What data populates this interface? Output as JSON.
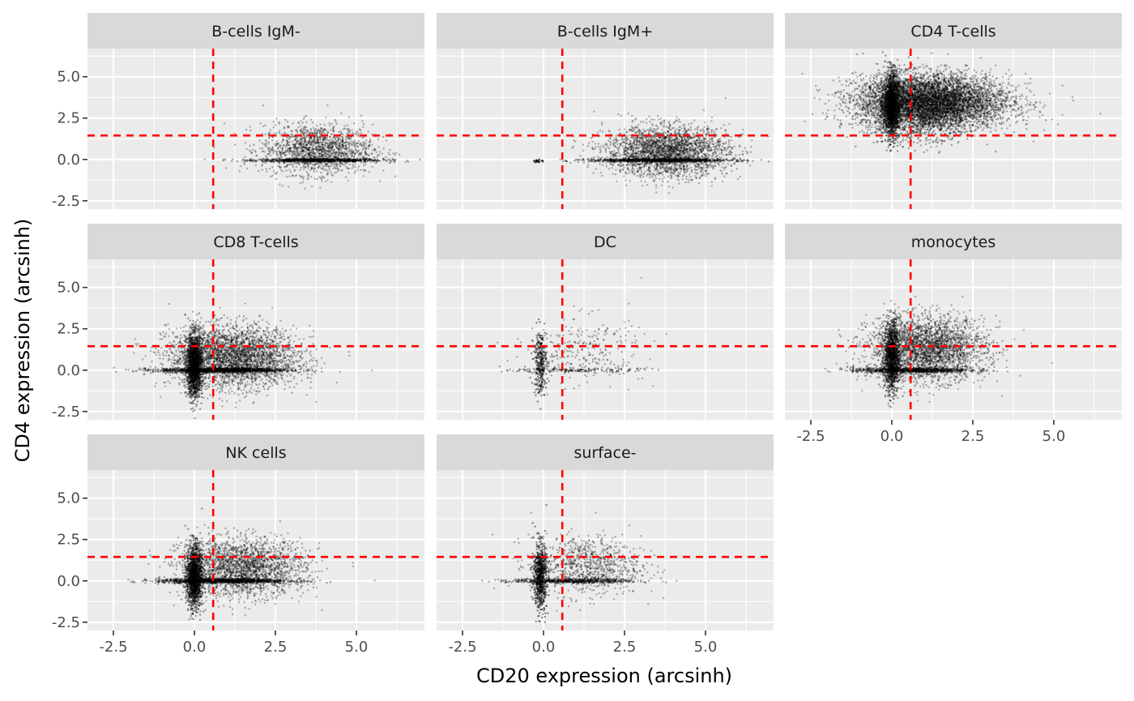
{
  "chart_data": {
    "type": "scatter",
    "layout": "facet_wrap",
    "xlabel": "CD20 expression (arcsinh)",
    "ylabel": "CD4 expression (arcsinh)",
    "xlim": [
      -3.3,
      7.1
    ],
    "ylim": [
      -3.0,
      6.7
    ],
    "x_ticks": [
      -2.5,
      0.0,
      2.5,
      5.0
    ],
    "x_tick_labels": [
      "-2.5",
      "0.0",
      "2.5",
      "5.0"
    ],
    "y_ticks": [
      -2.5,
      0.0,
      2.5,
      5.0
    ],
    "y_tick_labels": [
      "-2.5",
      "0.0",
      "2.5",
      "5.0"
    ],
    "reference_lines": {
      "vertical_x": 0.58,
      "horizontal_y": 1.45,
      "color": "#FF0000",
      "style": "dashed"
    },
    "point_color": "#000000",
    "grid": true,
    "panel_background": "#EBEBEB",
    "strip_background": "#D9D9D9",
    "facets": [
      {
        "label": "B-cells IgM-",
        "clusters": [
          {
            "cx": 3.8,
            "cy": -0.05,
            "sx": 1.0,
            "sy": 0.05,
            "n": 900,
            "op": 0.35
          },
          {
            "cx": 3.8,
            "cy": 0.6,
            "sx": 0.85,
            "sy": 0.75,
            "n": 1600,
            "op": 0.3
          }
        ]
      },
      {
        "label": "B-cells IgM+",
        "clusters": [
          {
            "cx": 3.6,
            "cy": -0.05,
            "sx": 1.05,
            "sy": 0.05,
            "n": 1100,
            "op": 0.35
          },
          {
            "cx": 3.8,
            "cy": 0.5,
            "sx": 0.95,
            "sy": 0.75,
            "n": 2600,
            "op": 0.3
          },
          {
            "cx": -0.2,
            "cy": -0.1,
            "sx": 0.08,
            "sy": 0.05,
            "n": 20,
            "op": 0.6
          }
        ]
      },
      {
        "label": "CD4 T-cells",
        "clusters": [
          {
            "cx": 1.3,
            "cy": 3.5,
            "sx": 1.2,
            "sy": 0.8,
            "n": 4500,
            "op": 0.3
          },
          {
            "cx": 0.0,
            "cy": 3.3,
            "sx": 0.12,
            "sy": 1.0,
            "n": 1600,
            "op": 0.4
          },
          {
            "cx": 0.9,
            "cy": 3.2,
            "sx": 0.9,
            "sy": 0.9,
            "n": 2400,
            "op": 0.35
          }
        ]
      },
      {
        "label": "CD8 T-cells",
        "clusters": [
          {
            "cx": 0.0,
            "cy": 0.3,
            "sx": 0.12,
            "sy": 0.95,
            "n": 1600,
            "op": 0.4
          },
          {
            "cx": 0.9,
            "cy": 0.0,
            "sx": 1.0,
            "sy": 0.07,
            "n": 1400,
            "op": 0.35
          },
          {
            "cx": 1.2,
            "cy": 0.8,
            "sx": 1.0,
            "sy": 0.9,
            "n": 3200,
            "op": 0.3
          }
        ]
      },
      {
        "label": "DC",
        "clusters": [
          {
            "cx": -0.1,
            "cy": 0.5,
            "sx": 0.1,
            "sy": 1.0,
            "n": 300,
            "op": 0.45
          },
          {
            "cx": 1.0,
            "cy": 0.0,
            "sx": 1.0,
            "sy": 0.07,
            "n": 180,
            "op": 0.35
          },
          {
            "cx": 1.3,
            "cy": 1.3,
            "sx": 0.9,
            "sy": 1.0,
            "n": 260,
            "op": 0.3
          }
        ]
      },
      {
        "label": "monocytes",
        "clusters": [
          {
            "cx": 0.0,
            "cy": 0.8,
            "sx": 0.12,
            "sy": 1.1,
            "n": 1200,
            "op": 0.4
          },
          {
            "cx": 0.6,
            "cy": 0.0,
            "sx": 0.9,
            "sy": 0.08,
            "n": 900,
            "op": 0.35
          },
          {
            "cx": 1.1,
            "cy": 1.3,
            "sx": 0.9,
            "sy": 0.95,
            "n": 2800,
            "op": 0.3
          }
        ]
      },
      {
        "label": "NK cells",
        "clusters": [
          {
            "cx": 0.0,
            "cy": 0.3,
            "sx": 0.12,
            "sy": 0.95,
            "n": 1500,
            "op": 0.4
          },
          {
            "cx": 0.9,
            "cy": 0.0,
            "sx": 1.0,
            "sy": 0.07,
            "n": 1300,
            "op": 0.35
          },
          {
            "cx": 1.5,
            "cy": 0.8,
            "sx": 0.95,
            "sy": 0.85,
            "n": 2200,
            "op": 0.3
          }
        ]
      },
      {
        "label": "surface-",
        "clusters": [
          {
            "cx": -0.1,
            "cy": 0.3,
            "sx": 0.1,
            "sy": 1.0,
            "n": 700,
            "op": 0.45
          },
          {
            "cx": 0.9,
            "cy": 0.0,
            "sx": 0.95,
            "sy": 0.07,
            "n": 600,
            "op": 0.35
          },
          {
            "cx": 1.3,
            "cy": 0.9,
            "sx": 0.85,
            "sy": 0.9,
            "n": 900,
            "op": 0.3
          }
        ]
      }
    ]
  }
}
